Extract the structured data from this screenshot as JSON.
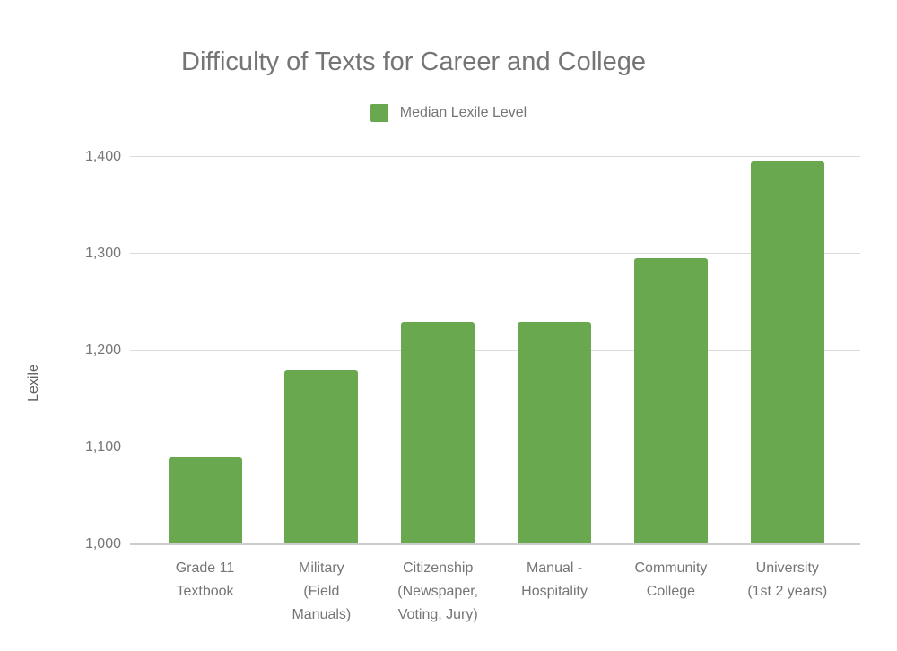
{
  "chart_data": {
    "type": "bar",
    "title": "Difficulty of Texts for Career and College",
    "legend": {
      "label": "Median Lexile Level",
      "position": "top"
    },
    "xlabel": "",
    "ylabel": "Lexile",
    "ylim": [
      1000,
      1400
    ],
    "yticks": [
      1000,
      1100,
      1200,
      1300,
      1400
    ],
    "ytick_labels": [
      "1,000",
      "1,100",
      "1,200",
      "1,300",
      "1,400"
    ],
    "grid": true,
    "bar_color": "#6aa84f",
    "text_color": "#757575",
    "categories": [
      "Grade 11 Textbook",
      "Military (Field Manuals)",
      "Citizenship (Newspaper, Voting, Jury)",
      "Manual - Hospitality",
      "Community College",
      "University (1st 2 years)"
    ],
    "category_lines": [
      [
        "Grade 11",
        "Textbook"
      ],
      [
        "Military",
        "(Field",
        "Manuals)"
      ],
      [
        "Citizenship",
        "(Newspaper,",
        "Voting, Jury)"
      ],
      [
        "Manual -",
        "Hospitality"
      ],
      [
        "Community",
        "College"
      ],
      [
        "University",
        "(1st 2 years)"
      ]
    ],
    "series": [
      {
        "name": "Median Lexile Level",
        "values": [
          1090,
          1180,
          1230,
          1230,
          1295,
          1395
        ]
      }
    ]
  }
}
